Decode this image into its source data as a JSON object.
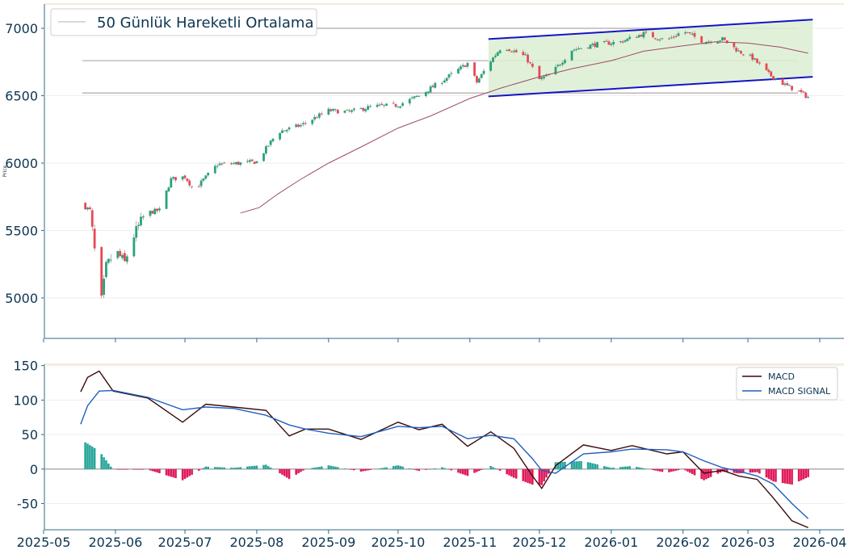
{
  "chart_data": [
    {
      "type": "candlestick",
      "ylabel": "Price",
      "ylim": [
        4700,
        7180
      ],
      "yticks": [
        5000,
        5500,
        6000,
        6500,
        7000
      ],
      "legend": {
        "label": "50 Günlük Hareketli Ortalama",
        "position": "top-left"
      },
      "colors": {
        "up": "#26a37a",
        "down": "#e84855",
        "ma": "#a04a6a",
        "channel_line": "#1414c8",
        "channel_fill": "#dcefd2",
        "hlines": "#b8b0b0",
        "axes": "#2e6b86"
      },
      "horizontal_levels": [
        7000,
        6760,
        6520
      ],
      "channel": {
        "upper": [
          [
            "2025-11-09",
            6920
          ],
          [
            "2026-03-29",
            7065
          ]
        ],
        "lower": [
          [
            "2025-11-09",
            6495
          ],
          [
            "2026-03-29",
            6640
          ]
        ]
      },
      "moving_average_50": [
        [
          "2025-07-25",
          5630
        ],
        [
          "2025-08-02",
          5670
        ],
        [
          "2025-08-10",
          5770
        ],
        [
          "2025-08-20",
          5880
        ],
        [
          "2025-09-01",
          6000
        ],
        [
          "2025-09-15",
          6120
        ],
        [
          "2025-10-01",
          6260
        ],
        [
          "2025-10-15",
          6350
        ],
        [
          "2025-11-01",
          6480
        ],
        [
          "2025-11-15",
          6560
        ],
        [
          "2025-12-01",
          6640
        ],
        [
          "2025-12-15",
          6700
        ],
        [
          "2026-01-01",
          6760
        ],
        [
          "2026-01-15",
          6830
        ],
        [
          "2026-02-01",
          6870
        ],
        [
          "2026-02-15",
          6900
        ],
        [
          "2026-03-01",
          6890
        ],
        [
          "2026-03-15",
          6860
        ],
        [
          "2026-03-27",
          6815
        ]
      ],
      "price_path": [
        [
          "2025-05-17",
          5700
        ],
        [
          "2025-05-21",
          5650
        ],
        [
          "2025-05-24",
          5200
        ],
        [
          "2025-05-26",
          4980
        ],
        [
          "2025-05-28",
          5230
        ],
        [
          "2025-06-01",
          5350
        ],
        [
          "2025-06-05",
          5260
        ],
        [
          "2025-06-08",
          5430
        ],
        [
          "2025-06-14",
          5630
        ],
        [
          "2025-06-20",
          5650
        ],
        [
          "2025-06-25",
          5880
        ],
        [
          "2025-07-01",
          5900
        ],
        [
          "2025-07-05",
          5800
        ],
        [
          "2025-07-15",
          5990
        ],
        [
          "2025-07-25",
          6000
        ],
        [
          "2025-08-01",
          6010
        ],
        [
          "2025-08-10",
          6230
        ],
        [
          "2025-08-20",
          6280
        ],
        [
          "2025-09-01",
          6390
        ],
        [
          "2025-09-10",
          6380
        ],
        [
          "2025-09-20",
          6420
        ],
        [
          "2025-10-01",
          6430
        ],
        [
          "2025-10-10",
          6500
        ],
        [
          "2025-10-20",
          6610
        ],
        [
          "2025-10-31",
          6740
        ],
        [
          "2025-11-04",
          6600
        ],
        [
          "2025-11-10",
          6760
        ],
        [
          "2025-11-15",
          6870
        ],
        [
          "2025-11-25",
          6790
        ],
        [
          "2025-12-01",
          6620
        ],
        [
          "2025-12-06",
          6660
        ],
        [
          "2025-12-15",
          6840
        ],
        [
          "2025-12-25",
          6880
        ],
        [
          "2026-01-05",
          6900
        ],
        [
          "2026-01-15",
          6960
        ],
        [
          "2026-01-25",
          6910
        ],
        [
          "2026-02-01",
          6980
        ],
        [
          "2026-02-10",
          6900
        ],
        [
          "2026-02-18",
          6920
        ],
        [
          "2026-02-25",
          6830
        ],
        [
          "2026-03-03",
          6780
        ],
        [
          "2026-03-10",
          6660
        ],
        [
          "2026-03-17",
          6580
        ],
        [
          "2026-03-22",
          6540
        ],
        [
          "2026-03-27",
          6490
        ]
      ],
      "xticks": [
        "2025-05",
        "2025-06",
        "2025-07",
        "2025-08",
        "2025-09",
        "2025-10",
        "2025-11",
        "2025-12",
        "2026-01",
        "2026-02",
        "2026-03",
        "2026-04"
      ]
    },
    {
      "type": "line+bar",
      "ylim": [
        -88,
        152
      ],
      "yticks": [
        -50,
        0,
        50,
        100,
        150
      ],
      "legend": {
        "position": "top-right"
      },
      "series": [
        {
          "name": "MACD",
          "color": "#3a0a0a",
          "points": [
            [
              "2025-05-17",
              112
            ],
            [
              "2025-05-20",
              133
            ],
            [
              "2025-05-25",
              142
            ],
            [
              "2025-05-31",
              113
            ],
            [
              "2025-06-15",
              103
            ],
            [
              "2025-06-30",
              68
            ],
            [
              "2025-07-10",
              94
            ],
            [
              "2025-07-22",
              90
            ],
            [
              "2025-08-05",
              85
            ],
            [
              "2025-08-15",
              48
            ],
            [
              "2025-08-22",
              58
            ],
            [
              "2025-09-01",
              58
            ],
            [
              "2025-09-15",
              43
            ],
            [
              "2025-10-01",
              68
            ],
            [
              "2025-10-10",
              57
            ],
            [
              "2025-10-20",
              65
            ],
            [
              "2025-10-31",
              33
            ],
            [
              "2025-11-10",
              54
            ],
            [
              "2025-11-20",
              30
            ],
            [
              "2025-11-28",
              -10
            ],
            [
              "2025-12-02",
              -28
            ],
            [
              "2025-12-08",
              5
            ],
            [
              "2025-12-20",
              35
            ],
            [
              "2026-01-01",
              27
            ],
            [
              "2026-01-10",
              34
            ],
            [
              "2026-01-25",
              22
            ],
            [
              "2026-02-01",
              25
            ],
            [
              "2026-02-10",
              -6
            ],
            [
              "2026-02-18",
              -2
            ],
            [
              "2026-02-25",
              -10
            ],
            [
              "2026-03-05",
              -15
            ],
            [
              "2026-03-12",
              -42
            ],
            [
              "2026-03-20",
              -75
            ],
            [
              "2026-03-27",
              -85
            ]
          ]
        },
        {
          "name": "MACD SIGNAL",
          "color": "#1f5fbf",
          "points": [
            [
              "2025-05-17",
              65
            ],
            [
              "2025-05-20",
              92
            ],
            [
              "2025-05-25",
              113
            ],
            [
              "2025-05-31",
              114
            ],
            [
              "2025-06-15",
              104
            ],
            [
              "2025-06-30",
              86
            ],
            [
              "2025-07-10",
              90
            ],
            [
              "2025-07-22",
              88
            ],
            [
              "2025-08-05",
              78
            ],
            [
              "2025-08-15",
              64
            ],
            [
              "2025-08-22",
              58
            ],
            [
              "2025-09-01",
              52
            ],
            [
              "2025-09-15",
              47
            ],
            [
              "2025-10-01",
              62
            ],
            [
              "2025-10-10",
              60
            ],
            [
              "2025-10-20",
              62
            ],
            [
              "2025-10-31",
              44
            ],
            [
              "2025-11-10",
              49
            ],
            [
              "2025-11-20",
              44
            ],
            [
              "2025-11-28",
              15
            ],
            [
              "2025-12-02",
              -2
            ],
            [
              "2025-12-08",
              -6
            ],
            [
              "2025-12-20",
              22
            ],
            [
              "2026-01-01",
              25
            ],
            [
              "2026-01-10",
              29
            ],
            [
              "2026-01-25",
              28
            ],
            [
              "2026-02-01",
              25
            ],
            [
              "2026-02-10",
              12
            ],
            [
              "2026-02-18",
              2
            ],
            [
              "2026-02-25",
              -3
            ],
            [
              "2026-03-05",
              -10
            ],
            [
              "2026-03-12",
              -22
            ],
            [
              "2026-03-20",
              -50
            ],
            [
              "2026-03-27",
              -72
            ]
          ]
        }
      ],
      "histogram_colors": {
        "positive": "#26a69a",
        "negative": "#e0195a"
      },
      "xticks": [
        "2025-05",
        "2025-06",
        "2025-07",
        "2025-08",
        "2025-09",
        "2025-10",
        "2025-11",
        "2025-12",
        "2026-01",
        "2026-02",
        "2026-03",
        "2026-04"
      ]
    }
  ]
}
